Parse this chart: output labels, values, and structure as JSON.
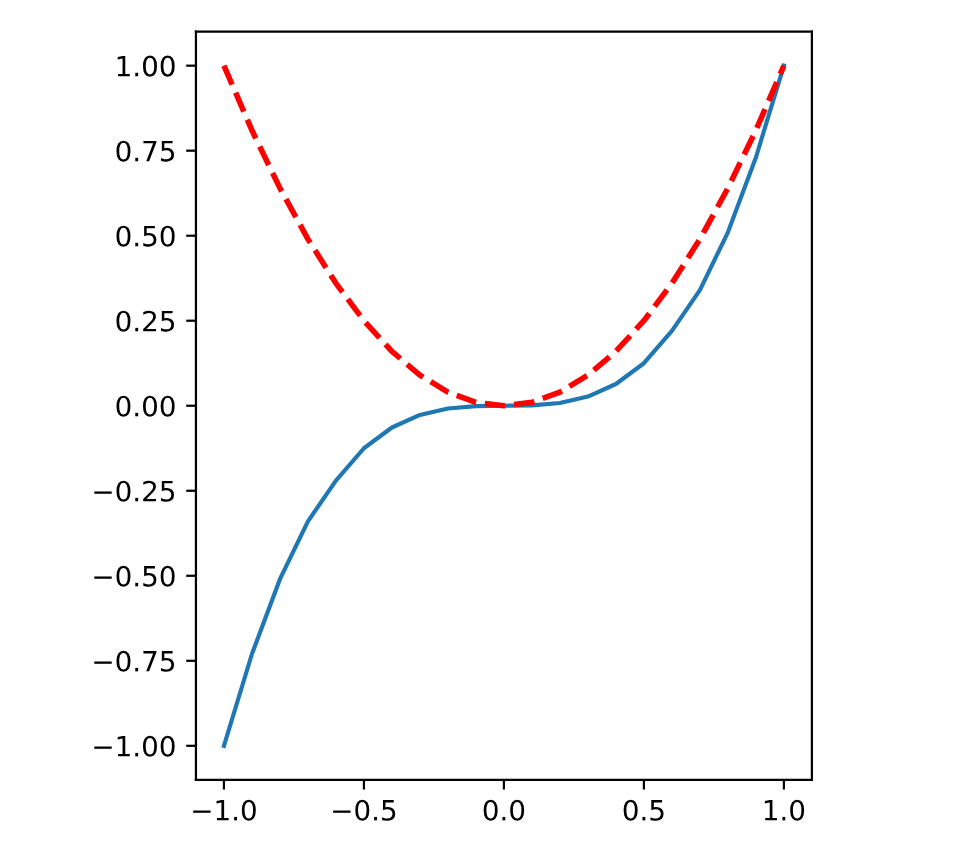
{
  "chart_data": {
    "type": "line",
    "xlim": [
      -1.1,
      1.1
    ],
    "ylim": [
      -1.1,
      1.1
    ],
    "xticks": [
      {
        "value": -1.0,
        "label": "−1.0"
      },
      {
        "value": -0.5,
        "label": "−0.5"
      },
      {
        "value": 0.0,
        "label": "0.0"
      },
      {
        "value": 0.5,
        "label": "0.5"
      },
      {
        "value": 1.0,
        "label": "1.0"
      }
    ],
    "yticks": [
      {
        "value": -1.0,
        "label": "−1.00"
      },
      {
        "value": -0.75,
        "label": "−0.75"
      },
      {
        "value": -0.5,
        "label": "−0.50"
      },
      {
        "value": -0.25,
        "label": "−0.25"
      },
      {
        "value": 0.0,
        "label": "0.00"
      },
      {
        "value": 0.25,
        "label": "0.25"
      },
      {
        "value": 0.5,
        "label": "0.50"
      },
      {
        "value": 0.75,
        "label": "0.75"
      },
      {
        "value": 1.0,
        "label": "1.00"
      }
    ],
    "grid": false,
    "legend": false,
    "series": [
      {
        "color": "#1f77b4",
        "line_style": "solid",
        "x": [
          -1.0,
          -0.9,
          -0.8,
          -0.7,
          -0.6,
          -0.5,
          -0.4,
          -0.3,
          -0.2,
          -0.1,
          0.0,
          0.1,
          0.2,
          0.3,
          0.4,
          0.5,
          0.6,
          0.7,
          0.8,
          0.9,
          1.0
        ],
        "values": [
          -1.0,
          -0.73,
          -0.51,
          -0.34,
          -0.22,
          -0.125,
          -0.064,
          -0.027,
          -0.008,
          -0.001,
          0.0,
          0.001,
          0.008,
          0.027,
          0.064,
          0.125,
          0.22,
          0.34,
          0.51,
          0.73,
          1.0
        ]
      },
      {
        "color": "#ff0000",
        "line_style": "dashed",
        "x": [
          -1.0,
          -0.9,
          -0.8,
          -0.7,
          -0.6,
          -0.5,
          -0.4,
          -0.3,
          -0.2,
          -0.1,
          0.0,
          0.1,
          0.2,
          0.3,
          0.4,
          0.5,
          0.6,
          0.7,
          0.8,
          0.9,
          1.0
        ],
        "values": [
          1.0,
          0.81,
          0.64,
          0.49,
          0.36,
          0.25,
          0.16,
          0.09,
          0.04,
          0.01,
          0.0,
          0.01,
          0.04,
          0.09,
          0.16,
          0.25,
          0.36,
          0.49,
          0.64,
          0.81,
          1.0
        ]
      }
    ]
  }
}
